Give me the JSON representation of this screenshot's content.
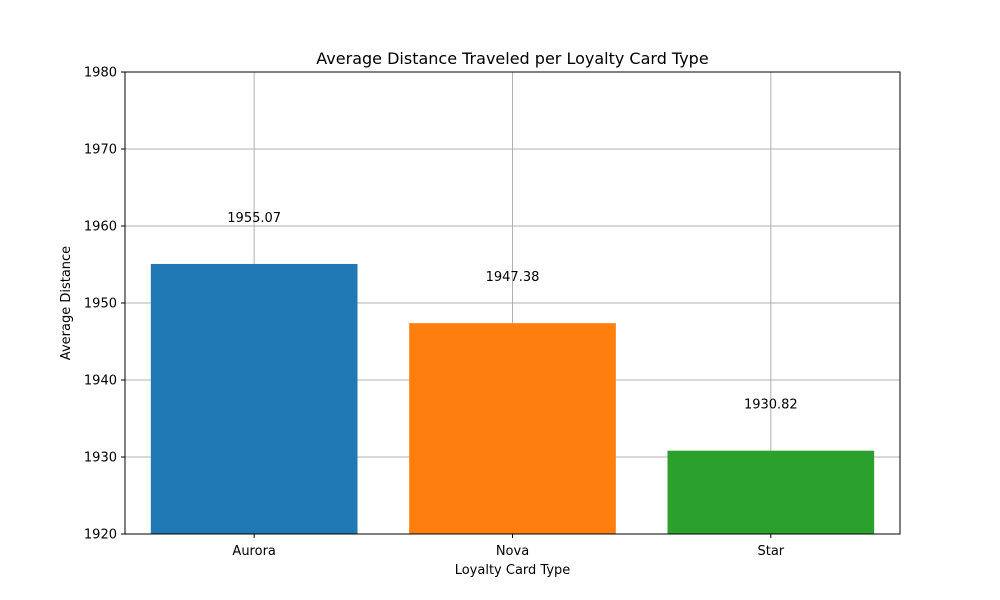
{
  "chart_data": {
    "type": "bar",
    "title": "Average Distance Traveled per Loyalty Card Type",
    "xlabel": "Loyalty Card Type",
    "ylabel": "Average Distance",
    "categories": [
      "Aurora",
      "Nova",
      "Star"
    ],
    "values": [
      1955.07,
      1947.38,
      1930.82
    ],
    "value_labels": [
      "1955.07",
      "1947.38",
      "1930.82"
    ],
    "colors": [
      "#1f77b4",
      "#ff7f0e",
      "#2ca02c"
    ],
    "ylim": [
      1920,
      1980
    ],
    "yticks": [
      1920,
      1930,
      1940,
      1950,
      1960,
      1970,
      1980
    ],
    "grid": true,
    "legend": "none"
  }
}
